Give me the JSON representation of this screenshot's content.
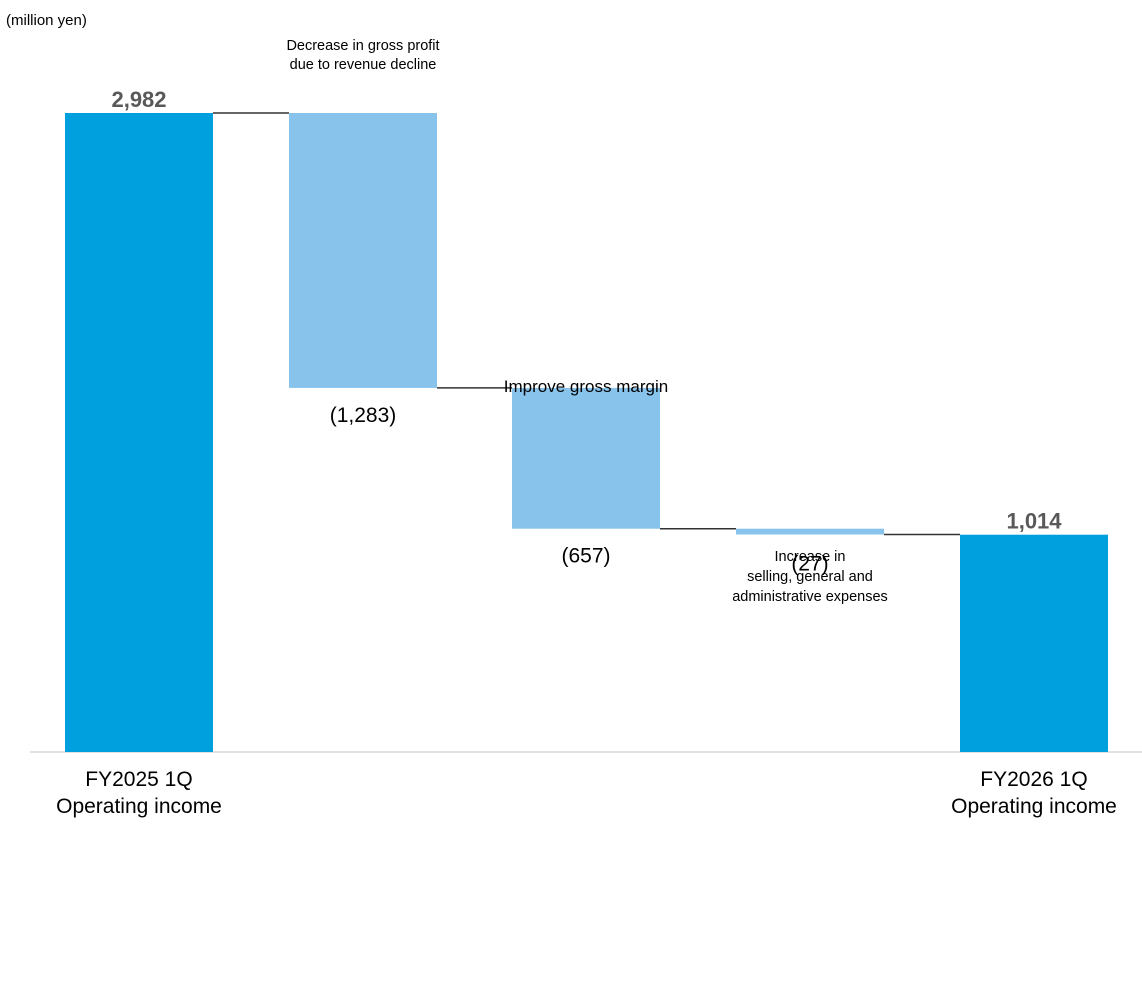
{
  "chart_data": {
    "type": "bar",
    "subtype": "waterfall",
    "unit_label": "(million yen)",
    "title": "",
    "xlabel": "",
    "ylabel": "",
    "ylim": [
      0,
      2982
    ],
    "grid": false,
    "legend": "none",
    "categories": [
      [
        "FY2025 1Q",
        "Operating income"
      ],
      [
        "Decrease in gross profit",
        "due to revenue decline"
      ],
      [
        "Improve gross margin"
      ],
      [
        "Increase in",
        "selling, general and",
        "administrative expenses"
      ],
      [
        "FY2026 1Q",
        "Operating income"
      ]
    ],
    "steps": [
      {
        "kind": "total",
        "value": 2982,
        "value_label": "2,982"
      },
      {
        "kind": "delta",
        "value": -1283,
        "value_label": "(1,283)"
      },
      {
        "kind": "delta",
        "value": -657,
        "value_label": "(657)"
      },
      {
        "kind": "delta",
        "value": -27,
        "value_label": "(27)"
      },
      {
        "kind": "total",
        "value": 1014,
        "value_label": "1,014"
      }
    ],
    "colors": {
      "total": "#00a0de",
      "delta": "#87c3ea",
      "connector": "#333333",
      "baseline": "#d9d9d9",
      "value_total_text": "#595959",
      "text": "#000000"
    }
  }
}
